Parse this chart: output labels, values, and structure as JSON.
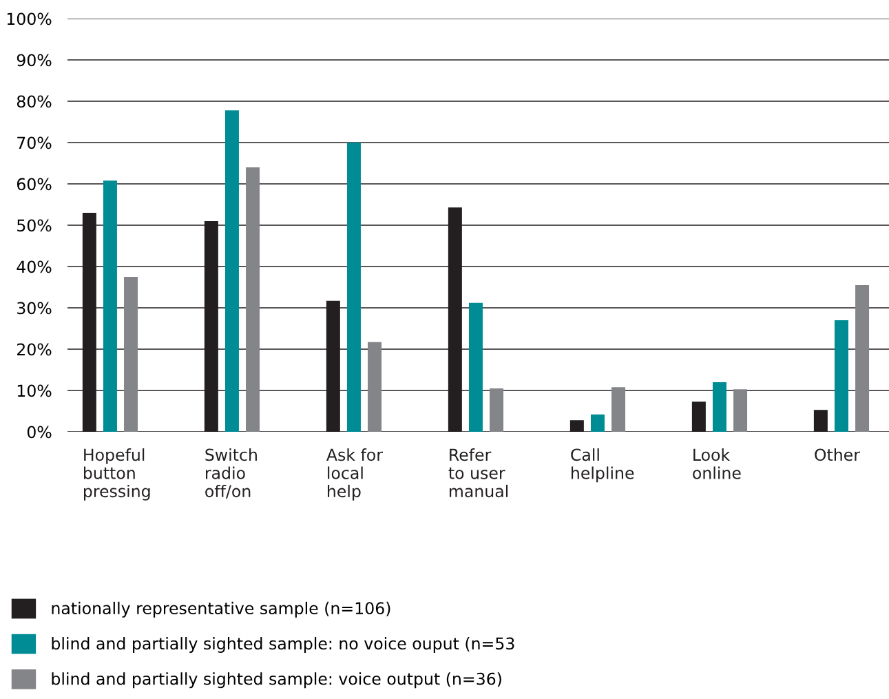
{
  "chart_data": {
    "type": "bar",
    "categories": [
      "Hopeful\nbutton\npressing",
      "Switch\nradio\noff/on",
      "Ask for\nlocal\nhelp",
      "Refer\nto user\nmanual",
      "Call\nhelpline",
      "Look\nonline",
      "Other"
    ],
    "series": [
      {
        "name": "nationally representative sample (n=106)",
        "color": "#231f20",
        "values": [
          53,
          51,
          31.7,
          54.3,
          2.8,
          7.3,
          5.3
        ]
      },
      {
        "name": "blind and partially sighted sample: no voice ouput (n=53",
        "color": "#008c95",
        "values": [
          60.8,
          77.8,
          70,
          31.2,
          4.2,
          12,
          27
        ]
      },
      {
        "name": "blind and partially sighted sample: voice output (n=36)",
        "color": "#848589",
        "values": [
          37.5,
          64,
          21.7,
          10.5,
          10.8,
          10.3,
          35.5
        ]
      }
    ],
    "ylim": [
      0,
      100
    ],
    "yticks": [
      {
        "value": 0,
        "label": "0%"
      },
      {
        "value": 10,
        "label": "10%"
      },
      {
        "value": 20,
        "label": "20%"
      },
      {
        "value": 30,
        "label": "30%"
      },
      {
        "value": 40,
        "label": "40%"
      },
      {
        "value": 50,
        "label": "50%"
      },
      {
        "value": 60,
        "label": "60%"
      },
      {
        "value": 70,
        "label": "70%"
      },
      {
        "value": 80,
        "label": "80%"
      },
      {
        "value": 90,
        "label": "90%"
      },
      {
        "value": 100,
        "label": "100%"
      }
    ],
    "grid": "y",
    "legend": "bottom"
  }
}
